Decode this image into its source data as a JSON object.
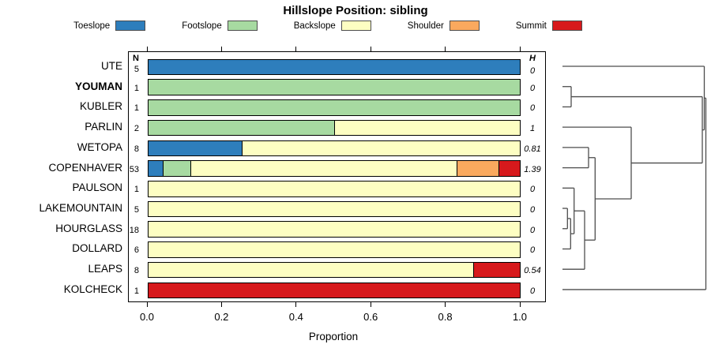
{
  "title": "Hillslope Position: sibling",
  "columns": {
    "n_header": "N",
    "h_header": "H"
  },
  "axis": {
    "xlabel": "Proportion",
    "tick_labels": [
      "0.0",
      "0.2",
      "0.4",
      "0.6",
      "0.8",
      "1.0"
    ],
    "tick_values": [
      0,
      0.2,
      0.4,
      0.6,
      0.8,
      1.0
    ]
  },
  "legend": {
    "items": [
      {
        "label": "Toeslope",
        "color": "#2E7EBC"
      },
      {
        "label": "Footslope",
        "color": "#A7DAA1"
      },
      {
        "label": "Backslope",
        "color": "#FDFEC2"
      },
      {
        "label": "Shoulder",
        "color": "#FAA95E"
      },
      {
        "label": "Summit",
        "color": "#D7191C"
      }
    ]
  },
  "chart_data": {
    "type": "bar",
    "subtype": "horizontal-stacked-proportion",
    "title": "Hillslope Position: sibling",
    "xlabel": "Proportion",
    "xlim": [
      0,
      1
    ],
    "legend_position": "top",
    "categories": [
      "Toeslope",
      "Footslope",
      "Backslope",
      "Shoulder",
      "Summit"
    ],
    "colors": {
      "Toeslope": "#2E7EBC",
      "Footslope": "#A7DAA1",
      "Backslope": "#FDFEC2",
      "Shoulder": "#FAA95E",
      "Summit": "#D7191C"
    },
    "rows": [
      {
        "name": "UTE",
        "bold": false,
        "n": 5,
        "h": "0",
        "segments": [
          {
            "category": "Toeslope",
            "value": 1.0
          }
        ]
      },
      {
        "name": "YOUMAN",
        "bold": true,
        "n": 1,
        "h": "0",
        "segments": [
          {
            "category": "Footslope",
            "value": 1.0
          }
        ]
      },
      {
        "name": "KUBLER",
        "bold": false,
        "n": 1,
        "h": "0",
        "segments": [
          {
            "category": "Footslope",
            "value": 1.0
          }
        ]
      },
      {
        "name": "PARLIN",
        "bold": false,
        "n": 2,
        "h": "1",
        "segments": [
          {
            "category": "Footslope",
            "value": 0.5
          },
          {
            "category": "Backslope",
            "value": 0.5
          }
        ]
      },
      {
        "name": "WETOPA",
        "bold": false,
        "n": 8,
        "h": "0.81",
        "segments": [
          {
            "category": "Toeslope",
            "value": 0.25
          },
          {
            "category": "Backslope",
            "value": 0.75
          }
        ]
      },
      {
        "name": "COPENHAVER",
        "bold": false,
        "n": 53,
        "h": "1.39",
        "segments": [
          {
            "category": "Toeslope",
            "value": 0.038
          },
          {
            "category": "Footslope",
            "value": 0.075
          },
          {
            "category": "Backslope",
            "value": 0.717
          },
          {
            "category": "Shoulder",
            "value": 0.113
          },
          {
            "category": "Summit",
            "value": 0.057
          }
        ]
      },
      {
        "name": "PAULSON",
        "bold": false,
        "n": 1,
        "h": "0",
        "segments": [
          {
            "category": "Backslope",
            "value": 1.0
          }
        ]
      },
      {
        "name": "LAKEMOUNTAIN",
        "bold": false,
        "n": 5,
        "h": "0",
        "segments": [
          {
            "category": "Backslope",
            "value": 1.0
          }
        ]
      },
      {
        "name": "HOURGLASS",
        "bold": false,
        "n": 18,
        "h": "0",
        "segments": [
          {
            "category": "Backslope",
            "value": 1.0
          }
        ]
      },
      {
        "name": "DOLLARD",
        "bold": false,
        "n": 6,
        "h": "0",
        "segments": [
          {
            "category": "Backslope",
            "value": 1.0
          }
        ]
      },
      {
        "name": "LEAPS",
        "bold": false,
        "n": 8,
        "h": "0.54",
        "segments": [
          {
            "category": "Backslope",
            "value": 0.875
          },
          {
            "category": "Summit",
            "value": 0.125
          }
        ]
      },
      {
        "name": "KOLCHECK",
        "bold": false,
        "n": 1,
        "h": "0",
        "segments": [
          {
            "category": "Summit",
            "value": 1.0
          }
        ]
      }
    ],
    "dendrogram": {
      "x": 203.5,
      "children": [
        {
          "x": 201.5,
          "children": [
            {
              "leaf": "UTE"
            },
            {
              "x": 199,
              "children": [
                {
                  "x": 33,
                  "children": [
                    {
                      "leaf": "YOUMAN"
                    },
                    {
                      "leaf": "KUBLER"
                    }
                  ]
                },
                {
                  "x": 109,
                  "children": [
                    {
                      "leaf": "PARLIN"
                    },
                    {
                      "x": 63.3,
                      "children": [
                        {
                          "x": 55,
                          "children": [
                            {
                              "leaf": "WETOPA"
                            },
                            {
                              "leaf": "COPENHAVER"
                            }
                          ]
                        },
                        {
                          "x": 50,
                          "children": [
                            {
                              "x": 36.7,
                              "children": [
                                {
                                  "leaf": "PAULSON"
                                },
                                {
                                  "x": 32.3,
                                  "children": [
                                    {
                                      "x": 28.3,
                                      "children": [
                                        {
                                          "leaf": "LAKEMOUNTAIN"
                                        },
                                        {
                                          "leaf": "HOURGLASS"
                                        }
                                      ]
                                    },
                                    {
                                      "leaf": "DOLLARD"
                                    }
                                  ]
                                }
                              ]
                            },
                            {
                              "leaf": "LEAPS"
                            }
                          ]
                        }
                      ]
                    }
                  ]
                }
              ]
            }
          ]
        },
        {
          "leaf": "KOLCHECK"
        }
      ]
    }
  }
}
